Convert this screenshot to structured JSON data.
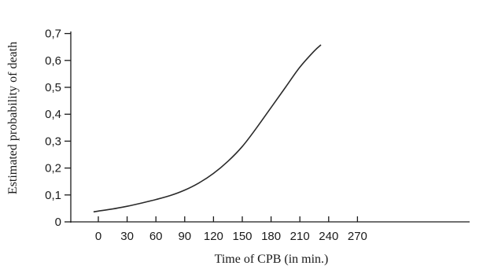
{
  "chart_data": {
    "type": "line",
    "xlabel": "Time of CPB (in min.)",
    "ylabel": "Estimated probability of death",
    "xlim": [
      -10,
      270
    ],
    "ylim": [
      0,
      0.7
    ],
    "x_ticks": [
      0,
      30,
      60,
      90,
      120,
      150,
      180,
      210,
      240,
      270
    ],
    "x_tick_labels": [
      "0",
      "30",
      "60",
      "90",
      "120",
      "150",
      "180",
      "210",
      "240",
      "270"
    ],
    "y_ticks": [
      0,
      0.1,
      0.2,
      0.3,
      0.4,
      0.5,
      0.6,
      0.7
    ],
    "y_tick_labels": [
      "0",
      "0,1",
      "0,2",
      "0,3",
      "0,4",
      "0,5",
      "0,6",
      "0,7"
    ],
    "grid": false,
    "series": [
      {
        "x": [
          -5,
          0,
          15,
          30,
          45,
          60,
          75,
          90,
          105,
          120,
          135,
          150,
          165,
          180,
          195,
          210,
          225,
          232
        ],
        "y": [
          0.037,
          0.04,
          0.048,
          0.058,
          0.07,
          0.083,
          0.098,
          0.118,
          0.145,
          0.18,
          0.225,
          0.28,
          0.35,
          0.425,
          0.5,
          0.575,
          0.635,
          0.658
        ]
      }
    ]
  }
}
